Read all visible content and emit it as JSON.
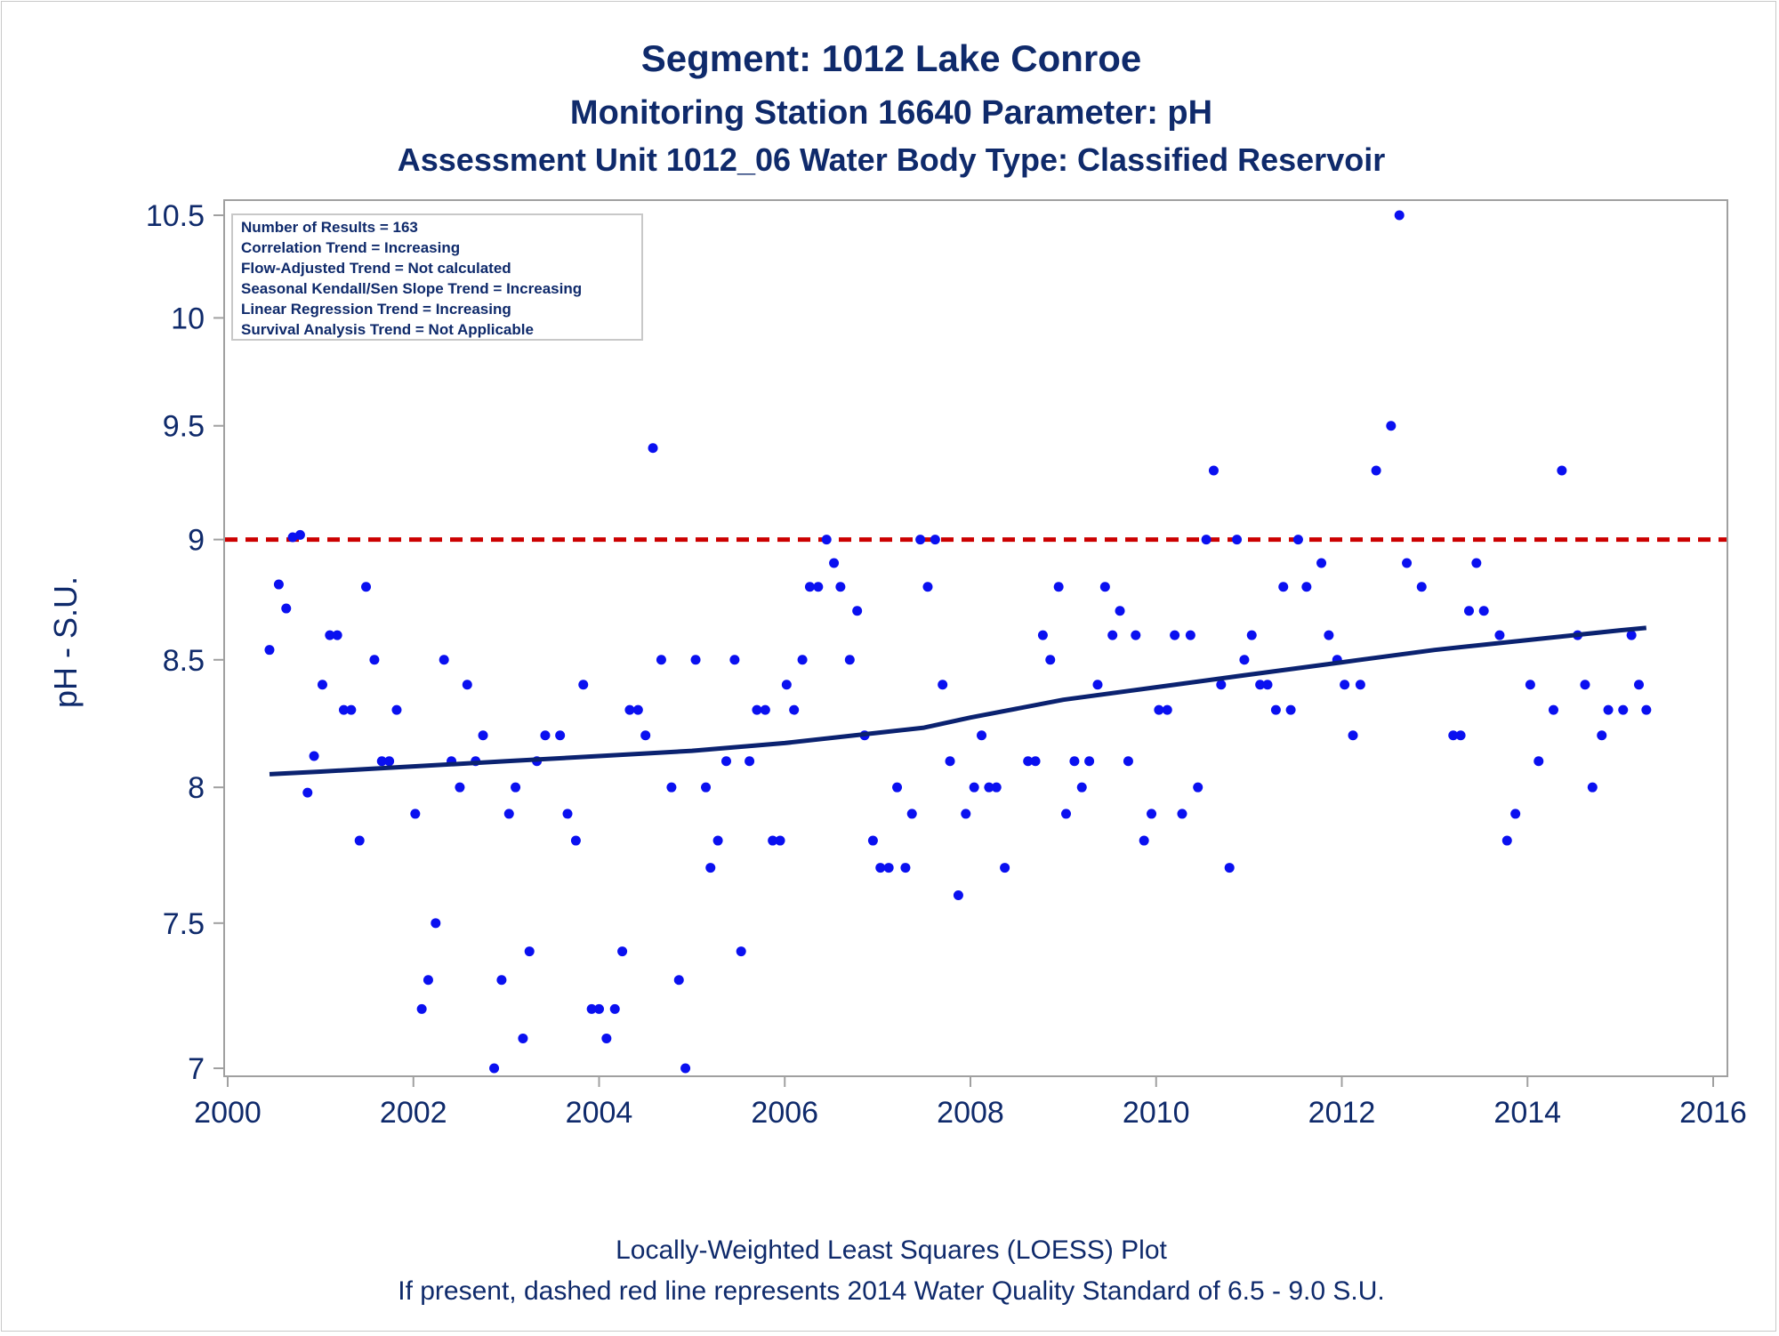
{
  "titles": {
    "line1": "Segment: 1012  Lake Conroe",
    "line2": "Monitoring Station 16640 Parameter: pH",
    "line3": "Assessment Unit 1012_06   Water Body Type: Classified Reservoir"
  },
  "stats_box": [
    "Number of Results = 163",
    "Correlation Trend = Increasing",
    "Flow-Adjusted Trend = Not calculated",
    "Seasonal Kendall/Sen Slope Trend = Increasing",
    "Linear Regression Trend = Increasing",
    "Survival Analysis Trend = Not Applicable"
  ],
  "footnotes": {
    "line1": "Locally-Weighted Least Squares (LOESS) Plot",
    "line2": "If present, dashed red line represents 2014 Water Quality Standard of 6.5 - 9.0 S.U."
  },
  "colors": {
    "text": "#0f2a6b",
    "points": "#0a10f0",
    "loess": "#0b2270",
    "standard": "#cc0000",
    "frame": "#a0a0a0"
  },
  "chart_data": {
    "type": "scatter",
    "ylabel": "pH - S.U.",
    "xlabel": "",
    "xlim": [
      2000,
      2016
    ],
    "ylim": [
      7,
      10.5
    ],
    "y_scale": "log",
    "xticks": [
      2000,
      2002,
      2004,
      2006,
      2008,
      2010,
      2012,
      2014,
      2016
    ],
    "yticks": [
      7,
      7.5,
      8,
      8.5,
      9,
      9.5,
      10,
      10.5
    ],
    "ytick_labels": [
      "7",
      "7.5",
      "8",
      "8.5",
      "9",
      "9.5",
      "10",
      "10.5"
    ],
    "reference_line": {
      "y": 9.0,
      "style": "dashed",
      "color": "#cc0000"
    },
    "legend_position": "top-left",
    "points": [
      [
        2000.45,
        8.54
      ],
      [
        2000.55,
        8.81
      ],
      [
        2000.63,
        8.71
      ],
      [
        2000.7,
        9.01
      ],
      [
        2000.78,
        9.02
      ],
      [
        2000.86,
        7.98
      ],
      [
        2000.93,
        8.12
      ],
      [
        2001.02,
        8.4
      ],
      [
        2001.1,
        8.6
      ],
      [
        2001.18,
        8.6
      ],
      [
        2001.25,
        8.3
      ],
      [
        2001.33,
        8.3
      ],
      [
        2001.42,
        7.8
      ],
      [
        2001.49,
        8.8
      ],
      [
        2001.58,
        8.5
      ],
      [
        2001.66,
        8.1
      ],
      [
        2001.74,
        8.1
      ],
      [
        2001.82,
        8.3
      ],
      [
        2002.02,
        7.9
      ],
      [
        2002.09,
        7.2
      ],
      [
        2002.16,
        7.3
      ],
      [
        2002.24,
        7.5
      ],
      [
        2002.33,
        8.5
      ],
      [
        2002.41,
        8.1
      ],
      [
        2002.5,
        8.0
      ],
      [
        2002.58,
        8.4
      ],
      [
        2002.67,
        8.1
      ],
      [
        2002.75,
        8.2
      ],
      [
        2002.87,
        7.0
      ],
      [
        2002.95,
        7.3
      ],
      [
        2003.03,
        7.9
      ],
      [
        2003.1,
        8.0
      ],
      [
        2003.18,
        7.1
      ],
      [
        2003.25,
        7.4
      ],
      [
        2003.33,
        8.1
      ],
      [
        2003.42,
        8.2
      ],
      [
        2003.58,
        8.2
      ],
      [
        2003.66,
        7.9
      ],
      [
        2003.75,
        7.8
      ],
      [
        2003.83,
        8.4
      ],
      [
        2003.92,
        7.2
      ],
      [
        2004.0,
        7.2
      ],
      [
        2004.08,
        7.1
      ],
      [
        2004.17,
        7.2
      ],
      [
        2004.25,
        7.4
      ],
      [
        2004.33,
        8.3
      ],
      [
        2004.42,
        8.3
      ],
      [
        2004.5,
        8.2
      ],
      [
        2004.58,
        9.4
      ],
      [
        2004.67,
        8.5
      ],
      [
        2004.78,
        8.0
      ],
      [
        2004.86,
        7.3
      ],
      [
        2004.93,
        7.0
      ],
      [
        2005.04,
        8.5
      ],
      [
        2005.15,
        8.0
      ],
      [
        2005.2,
        7.7
      ],
      [
        2005.28,
        7.8
      ],
      [
        2005.37,
        8.1
      ],
      [
        2005.46,
        8.5
      ],
      [
        2005.53,
        7.4
      ],
      [
        2005.62,
        8.1
      ],
      [
        2005.7,
        8.3
      ],
      [
        2005.79,
        8.3
      ],
      [
        2005.87,
        7.8
      ],
      [
        2005.95,
        7.8
      ],
      [
        2006.02,
        8.4
      ],
      [
        2006.1,
        8.3
      ],
      [
        2006.19,
        8.5
      ],
      [
        2006.27,
        8.8
      ],
      [
        2006.36,
        8.8
      ],
      [
        2006.45,
        9.0
      ],
      [
        2006.53,
        8.9
      ],
      [
        2006.6,
        8.8
      ],
      [
        2006.7,
        8.5
      ],
      [
        2006.78,
        8.7
      ],
      [
        2006.86,
        8.2
      ],
      [
        2006.95,
        7.8
      ],
      [
        2007.03,
        7.7
      ],
      [
        2007.12,
        7.7
      ],
      [
        2007.21,
        8.0
      ],
      [
        2007.3,
        7.7
      ],
      [
        2007.37,
        7.9
      ],
      [
        2007.46,
        9.0
      ],
      [
        2007.54,
        8.8
      ],
      [
        2007.62,
        9.0
      ],
      [
        2007.7,
        8.4
      ],
      [
        2007.78,
        8.1
      ],
      [
        2007.87,
        7.6
      ],
      [
        2007.95,
        7.9
      ],
      [
        2008.04,
        8.0
      ],
      [
        2008.12,
        8.2
      ],
      [
        2008.2,
        8.0
      ],
      [
        2008.28,
        8.0
      ],
      [
        2008.37,
        7.7
      ],
      [
        2008.62,
        8.1
      ],
      [
        2008.7,
        8.1
      ],
      [
        2008.78,
        8.6
      ],
      [
        2008.86,
        8.5
      ],
      [
        2008.95,
        8.8
      ],
      [
        2009.03,
        7.9
      ],
      [
        2009.12,
        8.1
      ],
      [
        2009.2,
        8.0
      ],
      [
        2009.28,
        8.1
      ],
      [
        2009.37,
        8.4
      ],
      [
        2009.45,
        8.8
      ],
      [
        2009.53,
        8.6
      ],
      [
        2009.61,
        8.7
      ],
      [
        2009.7,
        8.1
      ],
      [
        2009.78,
        8.6
      ],
      [
        2009.87,
        7.8
      ],
      [
        2009.95,
        7.9
      ],
      [
        2010.03,
        8.3
      ],
      [
        2010.12,
        8.3
      ],
      [
        2010.2,
        8.6
      ],
      [
        2010.28,
        7.9
      ],
      [
        2010.37,
        8.6
      ],
      [
        2010.45,
        8.0
      ],
      [
        2010.54,
        9.0
      ],
      [
        2010.62,
        9.3
      ],
      [
        2010.7,
        8.4
      ],
      [
        2010.79,
        7.7
      ],
      [
        2010.87,
        9.0
      ],
      [
        2010.95,
        8.5
      ],
      [
        2011.03,
        8.6
      ],
      [
        2011.12,
        8.4
      ],
      [
        2011.2,
        8.4
      ],
      [
        2011.29,
        8.3
      ],
      [
        2011.37,
        8.8
      ],
      [
        2011.45,
        8.3
      ],
      [
        2011.53,
        9.0
      ],
      [
        2011.62,
        8.8
      ],
      [
        2011.78,
        8.9
      ],
      [
        2011.86,
        8.6
      ],
      [
        2011.95,
        8.5
      ],
      [
        2012.03,
        8.4
      ],
      [
        2012.12,
        8.2
      ],
      [
        2012.2,
        8.4
      ],
      [
        2012.37,
        9.3
      ],
      [
        2012.53,
        9.5
      ],
      [
        2012.62,
        10.5
      ],
      [
        2012.7,
        8.9
      ],
      [
        2012.86,
        8.8
      ],
      [
        2013.2,
        8.2
      ],
      [
        2013.28,
        8.2
      ],
      [
        2013.37,
        8.7
      ],
      [
        2013.45,
        8.9
      ],
      [
        2013.53,
        8.7
      ],
      [
        2013.7,
        8.6
      ],
      [
        2013.78,
        7.8
      ],
      [
        2013.87,
        7.9
      ],
      [
        2014.03,
        8.4
      ],
      [
        2014.12,
        8.1
      ],
      [
        2014.28,
        8.3
      ],
      [
        2014.37,
        9.3
      ],
      [
        2014.54,
        8.6
      ],
      [
        2014.62,
        8.4
      ],
      [
        2014.7,
        8.0
      ],
      [
        2014.8,
        8.2
      ],
      [
        2014.87,
        8.3
      ],
      [
        2015.03,
        8.3
      ],
      [
        2015.12,
        8.6
      ],
      [
        2015.2,
        8.4
      ],
      [
        2015.28,
        8.3
      ]
    ],
    "loess": [
      [
        2000.45,
        8.05
      ],
      [
        2001.0,
        8.06
      ],
      [
        2002.0,
        8.08
      ],
      [
        2003.0,
        8.1
      ],
      [
        2004.0,
        8.12
      ],
      [
        2005.0,
        8.14
      ],
      [
        2006.0,
        8.17
      ],
      [
        2007.0,
        8.21
      ],
      [
        2007.5,
        8.23
      ],
      [
        2008.0,
        8.27
      ],
      [
        2009.0,
        8.34
      ],
      [
        2010.0,
        8.39
      ],
      [
        2011.0,
        8.44
      ],
      [
        2012.0,
        8.49
      ],
      [
        2013.0,
        8.54
      ],
      [
        2014.0,
        8.58
      ],
      [
        2015.0,
        8.62
      ],
      [
        2015.28,
        8.63
      ]
    ]
  }
}
